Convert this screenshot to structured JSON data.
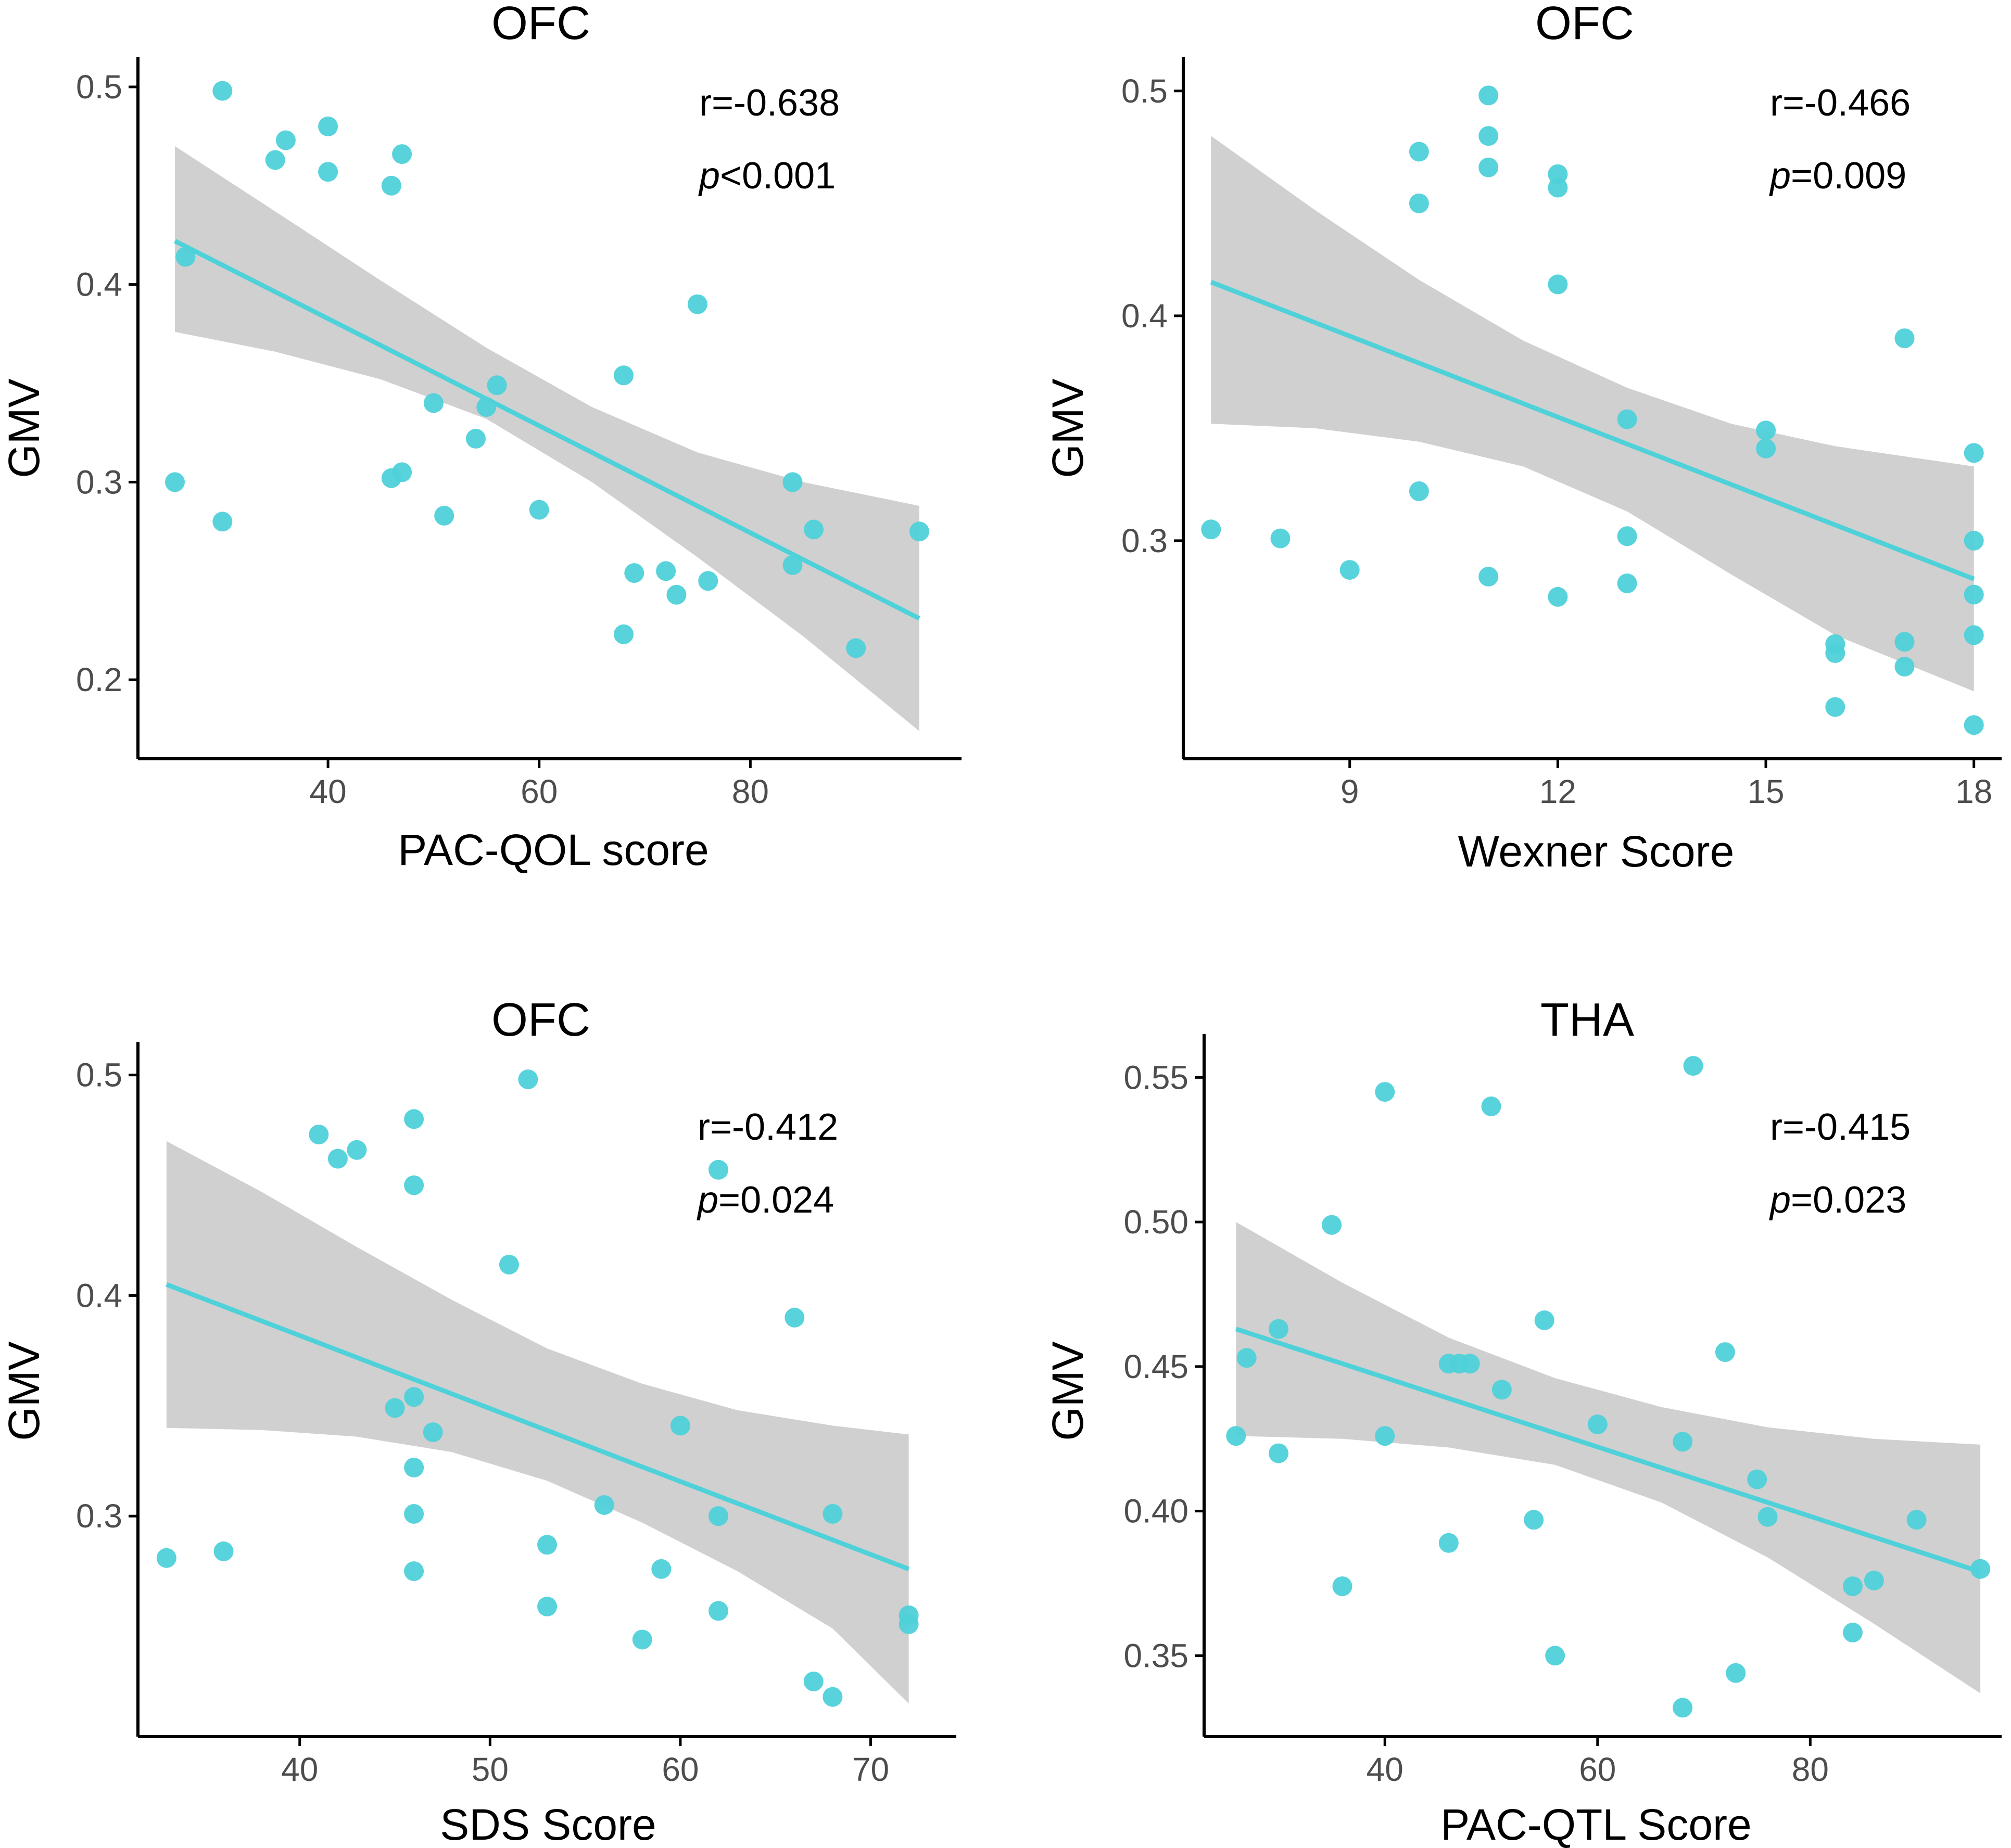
{
  "style": {
    "point_color": "#4fd1d9",
    "line_color": "#4fd1d9",
    "band_color": "#d0d0d0",
    "axis_color": "#000000"
  },
  "chart_data": [
    {
      "type": "scatter",
      "title": "OFC",
      "xlabel": "PAC-QOL score",
      "ylabel": "GMV",
      "xlim": [
        22,
        100
      ],
      "ylim": [
        0.16,
        0.515
      ],
      "xticks": [
        40,
        60,
        80
      ],
      "xtick_labels": [
        "40",
        "60",
        "80"
      ],
      "yticks": [
        0.2,
        0.3,
        0.4,
        0.5
      ],
      "ytick_labels": [
        "0.2",
        "0.3",
        "0.4",
        "0.5"
      ],
      "stat": {
        "r": "r=-0.638",
        "p_symbol": "p",
        "p_rest": "<0.001"
      },
      "fit": {
        "x0": 25.5,
        "y0": 0.422,
        "x1": 96,
        "y1": 0.231
      },
      "band": {
        "x": [
          25.5,
          35,
          45,
          55,
          65,
          75,
          85,
          96
        ],
        "upper": [
          0.47,
          0.437,
          0.402,
          0.368,
          0.338,
          0.315,
          0.3,
          0.288
        ],
        "lower": [
          0.376,
          0.366,
          0.352,
          0.332,
          0.3,
          0.262,
          0.222,
          0.174
        ]
      },
      "points": [
        [
          30,
          0.498
        ],
        [
          36,
          0.473
        ],
        [
          35,
          0.463
        ],
        [
          40,
          0.48
        ],
        [
          40,
          0.457
        ],
        [
          47,
          0.466
        ],
        [
          46,
          0.45
        ],
        [
          26.5,
          0.414
        ],
        [
          75,
          0.39
        ],
        [
          68,
          0.354
        ],
        [
          56,
          0.349
        ],
        [
          50,
          0.34
        ],
        [
          55,
          0.338
        ],
        [
          54,
          0.322
        ],
        [
          47,
          0.305
        ],
        [
          46,
          0.302
        ],
        [
          25.5,
          0.3
        ],
        [
          30,
          0.28
        ],
        [
          51,
          0.283
        ],
        [
          60,
          0.286
        ],
        [
          84,
          0.3
        ],
        [
          86,
          0.276
        ],
        [
          69,
          0.254
        ],
        [
          72,
          0.255
        ],
        [
          76,
          0.25
        ],
        [
          73,
          0.243
        ],
        [
          84,
          0.258
        ],
        [
          68,
          0.223
        ],
        [
          90,
          0.216
        ],
        [
          96,
          0.275
        ]
      ]
    },
    {
      "type": "scatter",
      "title": "OFC",
      "xlabel": "Wexner Score",
      "ylabel": "GMV",
      "xlim": [
        6.6,
        18.4
      ],
      "ylim": [
        0.203,
        0.515
      ],
      "xticks": [
        9,
        12,
        15,
        18
      ],
      "xtick_labels": [
        "9",
        "12",
        "15",
        "18"
      ],
      "yticks": [
        0.3,
        0.4,
        0.5
      ],
      "ytick_labels": [
        "0.3",
        "0.4",
        "0.5"
      ],
      "stat": {
        "r": "r=-0.466",
        "p_symbol": "p",
        "p_rest": "=0.009"
      },
      "fit": {
        "x0": 7,
        "y0": 0.415,
        "x1": 18,
        "y1": 0.283
      },
      "band": {
        "x": [
          7,
          8.5,
          10,
          11.5,
          13,
          14.5,
          16,
          18
        ],
        "upper": [
          0.48,
          0.447,
          0.416,
          0.389,
          0.368,
          0.352,
          0.342,
          0.333
        ],
        "lower": [
          0.352,
          0.35,
          0.344,
          0.333,
          0.313,
          0.285,
          0.258,
          0.233
        ]
      },
      "points": [
        [
          11,
          0.498
        ],
        [
          11,
          0.48
        ],
        [
          10,
          0.473
        ],
        [
          11,
          0.466
        ],
        [
          12,
          0.463
        ],
        [
          12,
          0.457
        ],
        [
          10,
          0.45
        ],
        [
          12,
          0.414
        ],
        [
          17,
          0.39
        ],
        [
          13,
          0.354
        ],
        [
          15,
          0.349
        ],
        [
          15,
          0.341
        ],
        [
          18,
          0.339
        ],
        [
          10,
          0.322
        ],
        [
          7,
          0.305
        ],
        [
          13,
          0.302
        ],
        [
          8,
          0.301
        ],
        [
          18,
          0.3
        ],
        [
          9,
          0.287
        ],
        [
          11,
          0.284
        ],
        [
          13,
          0.281
        ],
        [
          12,
          0.275
        ],
        [
          18,
          0.276
        ],
        [
          16,
          0.254
        ],
        [
          17,
          0.255
        ],
        [
          18,
          0.258
        ],
        [
          16,
          0.25
        ],
        [
          17,
          0.244
        ],
        [
          16,
          0.226
        ],
        [
          18,
          0.218
        ]
      ]
    },
    {
      "type": "scatter",
      "title": "OFC",
      "xlabel": "SDS Score",
      "ylabel": "GMV",
      "xlim": [
        31.5,
        74.5
      ],
      "ylim": [
        0.2,
        0.515
      ],
      "xticks": [
        40,
        50,
        60,
        70
      ],
      "xtick_labels": [
        "40",
        "50",
        "60",
        "70"
      ],
      "yticks": [
        0.3,
        0.4,
        0.5
      ],
      "ytick_labels": [
        "0.3",
        "0.4",
        "0.5"
      ],
      "stat": {
        "r": "r=-0.412",
        "p_symbol": "p",
        "p_rest": "=0.024"
      },
      "fit": {
        "x0": 33,
        "y0": 0.405,
        "x1": 72,
        "y1": 0.276
      },
      "band": {
        "x": [
          33,
          38,
          43,
          48,
          53,
          58,
          63,
          68,
          72
        ],
        "upper": [
          0.47,
          0.447,
          0.422,
          0.398,
          0.376,
          0.36,
          0.348,
          0.341,
          0.337
        ],
        "lower": [
          0.34,
          0.339,
          0.336,
          0.329,
          0.316,
          0.297,
          0.275,
          0.249,
          0.215
        ]
      },
      "points": [
        [
          52,
          0.498
        ],
        [
          46,
          0.48
        ],
        [
          41,
          0.473
        ],
        [
          43,
          0.466
        ],
        [
          42,
          0.462
        ],
        [
          62,
          0.457
        ],
        [
          46,
          0.45
        ],
        [
          51,
          0.414
        ],
        [
          66,
          0.39
        ],
        [
          46,
          0.354
        ],
        [
          45,
          0.349
        ],
        [
          60,
          0.341
        ],
        [
          47,
          0.338
        ],
        [
          46,
          0.322
        ],
        [
          56,
          0.305
        ],
        [
          46,
          0.301
        ],
        [
          62,
          0.3
        ],
        [
          68,
          0.301
        ],
        [
          53,
          0.287
        ],
        [
          36,
          0.284
        ],
        [
          33,
          0.281
        ],
        [
          46,
          0.275
        ],
        [
          59,
          0.276
        ],
        [
          53,
          0.259
        ],
        [
          62,
          0.257
        ],
        [
          72,
          0.255
        ],
        [
          72,
          0.251
        ],
        [
          58,
          0.244
        ],
        [
          67,
          0.225
        ],
        [
          68,
          0.218
        ]
      ]
    },
    {
      "type": "scatter",
      "title": "THA",
      "xlabel": "PAC-QTL Score",
      "ylabel": "GMV",
      "xlim": [
        23,
        98
      ],
      "ylim": [
        0.322,
        0.565
      ],
      "xticks": [
        40,
        60,
        80
      ],
      "xtick_labels": [
        "40",
        "60",
        "80"
      ],
      "yticks": [
        0.35,
        0.4,
        0.45,
        0.5,
        0.55
      ],
      "ytick_labels": [
        "0.35",
        "0.40",
        "0.45",
        "0.50",
        "0.55"
      ],
      "stat": {
        "r": "r=-0.415",
        "p_symbol": "p",
        "p_rest": "=0.023"
      },
      "fit": {
        "x0": 26,
        "y0": 0.463,
        "x1": 96,
        "y1": 0.379
      },
      "band": {
        "x": [
          26,
          36,
          46,
          56,
          66,
          76,
          86,
          96
        ],
        "upper": [
          0.5,
          0.479,
          0.46,
          0.446,
          0.436,
          0.429,
          0.425,
          0.423
        ],
        "lower": [
          0.426,
          0.425,
          0.422,
          0.416,
          0.403,
          0.384,
          0.361,
          0.337
        ]
      },
      "points": [
        [
          69,
          0.554
        ],
        [
          40,
          0.545
        ],
        [
          50,
          0.54
        ],
        [
          35,
          0.499
        ],
        [
          55,
          0.466
        ],
        [
          30,
          0.463
        ],
        [
          72,
          0.455
        ],
        [
          27,
          0.453
        ],
        [
          46,
          0.451
        ],
        [
          47,
          0.451
        ],
        [
          48,
          0.451
        ],
        [
          51,
          0.442
        ],
        [
          60,
          0.43
        ],
        [
          26,
          0.426
        ],
        [
          40,
          0.426
        ],
        [
          68,
          0.424
        ],
        [
          30,
          0.42
        ],
        [
          75,
          0.411
        ],
        [
          76,
          0.398
        ],
        [
          54,
          0.397
        ],
        [
          90,
          0.397
        ],
        [
          46,
          0.389
        ],
        [
          96,
          0.38
        ],
        [
          86,
          0.376
        ],
        [
          84,
          0.374
        ],
        [
          36,
          0.374
        ],
        [
          84,
          0.358
        ],
        [
          56,
          0.35
        ],
        [
          73,
          0.344
        ],
        [
          68,
          0.332
        ]
      ]
    }
  ]
}
